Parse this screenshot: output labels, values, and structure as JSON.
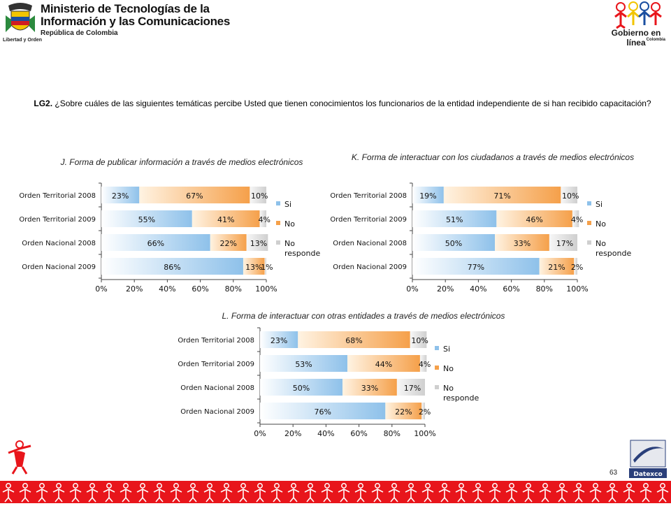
{
  "header": {
    "ministry_line1": "Ministerio de Tecnologías de la",
    "ministry_line2": "Información y las Comunicaciones",
    "ministry_line3": "República de Colombia",
    "motto": "Libertad y Orden",
    "gel_logo": "Gobierno en línea",
    "gel_country": "Colombia"
  },
  "question": {
    "code": "LG2.",
    "text": "¿Sobre cuáles de las siguientes temáticas percibe Usted que tienen conocimientos los funcionarios de la entidad independiente de si han recibido capacitación?"
  },
  "colors": {
    "si": "#8ec1ea",
    "no": "#f5a04a",
    "nr": "#cfcfcf"
  },
  "chart_data": [
    {
      "type": "bar",
      "orientation": "horizontal-stacked",
      "title": "J. Forma de publicar información a través de medios electrónicos",
      "categories": [
        "Orden Territorial 2008",
        "Orden Territorial 2009",
        "Orden Nacional 2008",
        "Orden Nacional 2009"
      ],
      "series": [
        {
          "name": "Si",
          "values": [
            23,
            55,
            66,
            86
          ]
        },
        {
          "name": "No",
          "values": [
            67,
            41,
            22,
            13
          ]
        },
        {
          "name": "No responde",
          "values": [
            10,
            4,
            13,
            1
          ]
        }
      ],
      "labels": [
        [
          "23%",
          "67%",
          "10%"
        ],
        [
          "55%",
          "41%",
          "4%"
        ],
        [
          "66%",
          "22%",
          "13%"
        ],
        [
          "86%",
          "13%",
          "1%"
        ]
      ],
      "xticks": [
        "0%",
        "20%",
        "40%",
        "60%",
        "80%",
        "100%"
      ],
      "xlim": [
        0,
        100
      ],
      "legend": "right"
    },
    {
      "type": "bar",
      "orientation": "horizontal-stacked",
      "title": "K. Forma de interactuar con los ciudadanos a través de medios electrónicos",
      "categories": [
        "Orden Territorial 2008",
        "Orden Territorial 2009",
        "Orden Nacional 2008",
        "Orden Nacional 2009"
      ],
      "series": [
        {
          "name": "Si",
          "values": [
            19,
            51,
            50,
            77
          ]
        },
        {
          "name": "No",
          "values": [
            71,
            46,
            33,
            21
          ]
        },
        {
          "name": "No responde",
          "values": [
            10,
            4,
            17,
            2
          ]
        }
      ],
      "labels": [
        [
          "19%",
          "71%",
          "10%"
        ],
        [
          "51%",
          "46%",
          "4%"
        ],
        [
          "50%",
          "33%",
          "17%"
        ],
        [
          "77%",
          "21%",
          "2%"
        ]
      ],
      "xticks": [
        "0%",
        "20%",
        "40%",
        "60%",
        "80%",
        "100%"
      ],
      "xlim": [
        0,
        100
      ],
      "legend": "right"
    },
    {
      "type": "bar",
      "orientation": "horizontal-stacked",
      "title": "L. Forma de interactuar con otras entidades a través de medios electrónicos",
      "categories": [
        "Orden Territorial 2008",
        "Orden Territorial 2009",
        "Orden Nacional 2008",
        "Orden Nacional 2009"
      ],
      "series": [
        {
          "name": "Si",
          "values": [
            23,
            53,
            50,
            76
          ]
        },
        {
          "name": "No",
          "values": [
            68,
            44,
            33,
            22
          ]
        },
        {
          "name": "No responde",
          "values": [
            10,
            4,
            17,
            2
          ]
        }
      ],
      "labels": [
        [
          "23%",
          "68%",
          "10%"
        ],
        [
          "53%",
          "44%",
          "4%"
        ],
        [
          "50%",
          "33%",
          "17%"
        ],
        [
          "76%",
          "22%",
          "2%"
        ]
      ],
      "xticks": [
        "0%",
        "20%",
        "40%",
        "60%",
        "80%",
        "100%"
      ],
      "xlim": [
        0,
        100
      ],
      "legend": "right"
    }
  ],
  "footer": {
    "page_number": "63",
    "brand": "Datexco"
  }
}
